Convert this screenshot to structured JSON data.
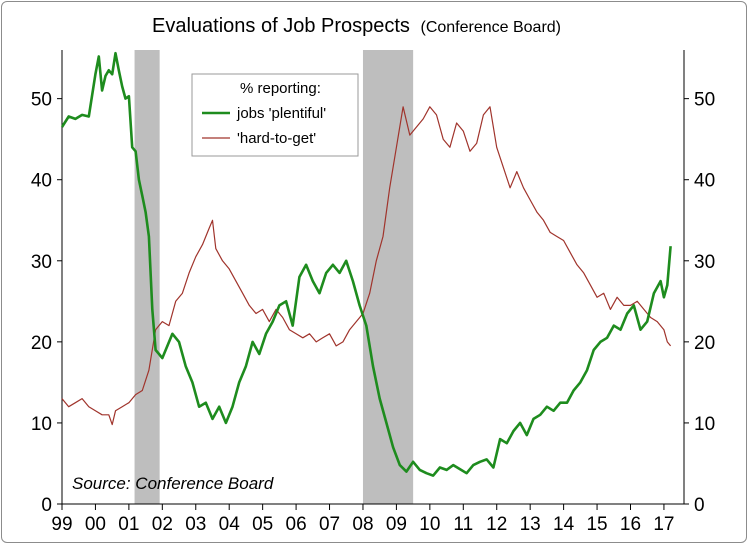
{
  "chart_data": {
    "type": "line",
    "title": "Evaluations of Job Prospects",
    "subtitle": "(Conference Board)",
    "source": "Source: Conference Board",
    "legend": {
      "title": "% reporting:",
      "placement": "top-center"
    },
    "x_range": [
      1999.0,
      2017.6
    ],
    "x_ticks": [
      {
        "year": 1999.0,
        "label": "99"
      },
      {
        "year": 2000.0,
        "label": "00"
      },
      {
        "year": 2001.0,
        "label": "01"
      },
      {
        "year": 2002.0,
        "label": "02"
      },
      {
        "year": 2003.0,
        "label": "03"
      },
      {
        "year": 2004.0,
        "label": "04"
      },
      {
        "year": 2005.0,
        "label": "05"
      },
      {
        "year": 2006.0,
        "label": "06"
      },
      {
        "year": 2007.0,
        "label": "07"
      },
      {
        "year": 2008.0,
        "label": "08"
      },
      {
        "year": 2009.0,
        "label": "09"
      },
      {
        "year": 2010.0,
        "label": "10"
      },
      {
        "year": 2011.0,
        "label": "11"
      },
      {
        "year": 2012.0,
        "label": "12"
      },
      {
        "year": 2013.0,
        "label": "13"
      },
      {
        "year": 2014.0,
        "label": "14"
      },
      {
        "year": 2015.0,
        "label": "15"
      },
      {
        "year": 2016.0,
        "label": "16"
      },
      {
        "year": 2017.0,
        "label": "17"
      }
    ],
    "y_range": [
      0,
      56
    ],
    "y_ticks": [
      0,
      10,
      20,
      30,
      40,
      50
    ],
    "y_axes": [
      "left",
      "right"
    ],
    "grid": false,
    "recessions": [
      [
        2001.17,
        2001.92
      ],
      [
        2008.0,
        2009.5
      ]
    ],
    "series": [
      {
        "name": "jobs 'plentiful'",
        "color": "#1e8c1e",
        "x": [
          1999.0,
          1999.2,
          1999.4,
          1999.6,
          1999.8,
          2000.0,
          2000.1,
          2000.2,
          2000.3,
          2000.4,
          2000.5,
          2000.6,
          2000.7,
          2000.8,
          2000.9,
          2001.0,
          2001.1,
          2001.2,
          2001.3,
          2001.4,
          2001.5,
          2001.6,
          2001.7,
          2001.8,
          2001.9,
          2002.0,
          2002.3,
          2002.5,
          2002.7,
          2002.9,
          2003.1,
          2003.3,
          2003.5,
          2003.7,
          2003.9,
          2004.1,
          2004.3,
          2004.5,
          2004.7,
          2004.9,
          2005.1,
          2005.3,
          2005.5,
          2005.7,
          2005.9,
          2006.1,
          2006.3,
          2006.5,
          2006.7,
          2006.9,
          2007.1,
          2007.3,
          2007.5,
          2007.7,
          2007.9,
          2008.1,
          2008.3,
          2008.5,
          2008.7,
          2008.9,
          2009.1,
          2009.3,
          2009.5,
          2009.7,
          2009.9,
          2010.1,
          2010.3,
          2010.5,
          2010.7,
          2010.9,
          2011.1,
          2011.3,
          2011.5,
          2011.7,
          2011.9,
          2012.1,
          2012.3,
          2012.5,
          2012.7,
          2012.9,
          2013.1,
          2013.3,
          2013.5,
          2013.7,
          2013.9,
          2014.1,
          2014.3,
          2014.5,
          2014.7,
          2014.9,
          2015.1,
          2015.3,
          2015.5,
          2015.7,
          2015.9,
          2016.1,
          2016.3,
          2016.5,
          2016.7,
          2016.9,
          2017.0,
          2017.1,
          2017.2
        ],
        "values": [
          46.5,
          47.8,
          47.5,
          48.0,
          47.8,
          53.0,
          55.2,
          51.0,
          52.8,
          53.5,
          53.0,
          55.6,
          53.5,
          51.5,
          50.0,
          50.3,
          44.0,
          43.5,
          40.0,
          38.0,
          36.0,
          33.0,
          24.0,
          19.0,
          18.5,
          18.0,
          21.0,
          20.0,
          17.0,
          15.0,
          12.0,
          12.5,
          10.5,
          12.0,
          10.0,
          12.0,
          15.0,
          17.0,
          20.0,
          18.5,
          21.0,
          22.5,
          24.5,
          25.0,
          22.0,
          28.0,
          29.5,
          27.5,
          26.0,
          28.5,
          29.5,
          28.5,
          30.0,
          27.5,
          24.5,
          22.0,
          17.0,
          13.0,
          10.0,
          7.0,
          4.8,
          4.0,
          5.2,
          4.2,
          3.8,
          3.5,
          4.5,
          4.2,
          4.8,
          4.3,
          3.8,
          4.8,
          5.2,
          5.5,
          4.5,
          8.0,
          7.5,
          9.0,
          10.0,
          8.5,
          10.5,
          11.0,
          12.0,
          11.5,
          12.5,
          12.5,
          14.0,
          15.0,
          16.5,
          19.0,
          20.0,
          20.5,
          22.0,
          21.5,
          23.5,
          24.5,
          21.5,
          22.5,
          26.0,
          27.5,
          25.5,
          27.0,
          31.8
        ]
      },
      {
        "name": "'hard-to-get'",
        "color": "#a0342c",
        "x": [
          1999.0,
          1999.2,
          1999.4,
          1999.6,
          1999.8,
          2000.0,
          2000.2,
          2000.4,
          2000.5,
          2000.6,
          2000.8,
          2001.0,
          2001.2,
          2001.4,
          2001.6,
          2001.8,
          2002.0,
          2002.2,
          2002.4,
          2002.6,
          2002.8,
          2003.0,
          2003.2,
          2003.4,
          2003.5,
          2003.6,
          2003.8,
          2004.0,
          2004.2,
          2004.4,
          2004.6,
          2004.8,
          2005.0,
          2005.2,
          2005.4,
          2005.6,
          2005.8,
          2006.0,
          2006.2,
          2006.4,
          2006.6,
          2006.8,
          2007.0,
          2007.2,
          2007.4,
          2007.6,
          2007.8,
          2008.0,
          2008.2,
          2008.4,
          2008.6,
          2008.8,
          2009.0,
          2009.2,
          2009.4,
          2009.6,
          2009.8,
          2010.0,
          2010.2,
          2010.4,
          2010.6,
          2010.8,
          2011.0,
          2011.2,
          2011.4,
          2011.6,
          2011.8,
          2012.0,
          2012.2,
          2012.4,
          2012.6,
          2012.8,
          2013.0,
          2013.2,
          2013.4,
          2013.6,
          2013.8,
          2014.0,
          2014.2,
          2014.4,
          2014.6,
          2014.8,
          2015.0,
          2015.2,
          2015.4,
          2015.6,
          2015.8,
          2016.0,
          2016.2,
          2016.4,
          2016.6,
          2016.8,
          2017.0,
          2017.1,
          2017.2
        ],
        "values": [
          13.0,
          12.0,
          12.5,
          13.0,
          12.0,
          11.5,
          11.0,
          11.0,
          9.8,
          11.5,
          12.0,
          12.5,
          13.5,
          14.0,
          16.5,
          21.5,
          22.5,
          22.0,
          25.0,
          26.0,
          28.5,
          30.5,
          32.0,
          34.0,
          35.0,
          31.5,
          30.0,
          29.0,
          27.5,
          26.0,
          24.5,
          23.5,
          24.0,
          22.5,
          24.0,
          23.0,
          21.5,
          21.0,
          20.5,
          21.0,
          20.0,
          20.5,
          21.0,
          19.5,
          20.0,
          21.5,
          22.5,
          23.5,
          26.0,
          30.0,
          33.0,
          39.0,
          44.0,
          49.0,
          45.5,
          46.5,
          47.5,
          49.0,
          48.0,
          45.0,
          44.0,
          47.0,
          46.0,
          43.5,
          44.5,
          48.0,
          49.0,
          44.0,
          41.5,
          39.0,
          41.0,
          39.0,
          37.5,
          36.0,
          35.0,
          33.5,
          33.0,
          32.5,
          31.0,
          29.5,
          28.5,
          27.0,
          25.5,
          26.0,
          24.0,
          25.5,
          24.5,
          24.5,
          25.0,
          24.0,
          23.0,
          22.5,
          21.5,
          20.0,
          19.5
        ]
      }
    ]
  }
}
